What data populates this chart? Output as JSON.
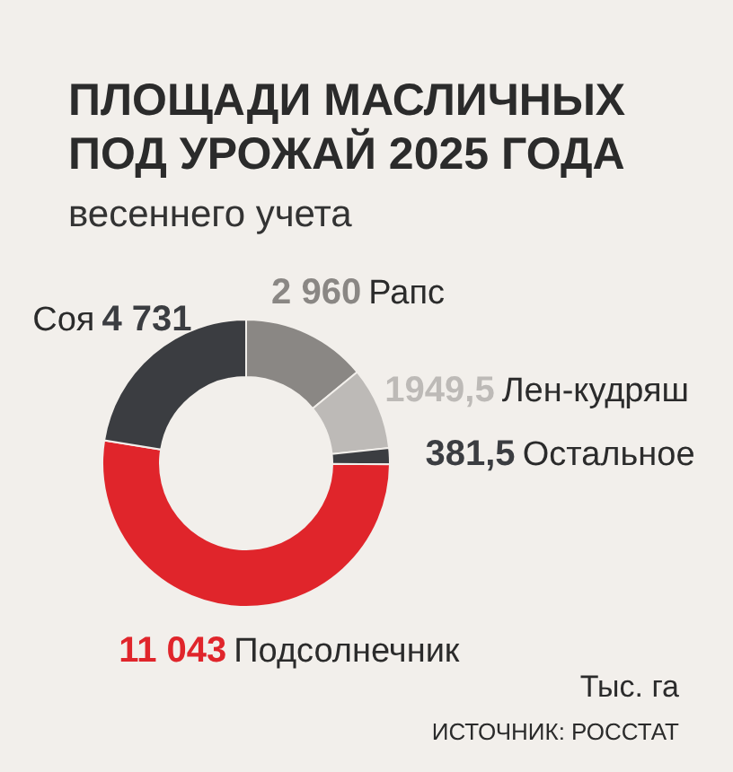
{
  "chart_data": {
    "type": "donut",
    "title": "ПЛОЩАДИ МАСЛИЧНЫХ ПОД УРОЖАЙ 2025 ГОДА",
    "subtitle": "весеннего учета",
    "categories": [
      "Рапс",
      "Лен-кудряш",
      "Остальное",
      "Подсолнечник",
      "Соя"
    ],
    "values": [
      2960,
      1949.5,
      381.5,
      11043,
      4731
    ],
    "colors": [
      "#8a8784",
      "#bdbab7",
      "#3b3d41",
      "#e0252b",
      "#3b3d41"
    ],
    "value_labels": [
      "2 960",
      "1949,5",
      "381,5",
      "11 043",
      "4 731"
    ],
    "annotations": [
      "Тыс. га",
      "ИСТОЧНИК: РОССТАТ"
    ]
  }
}
